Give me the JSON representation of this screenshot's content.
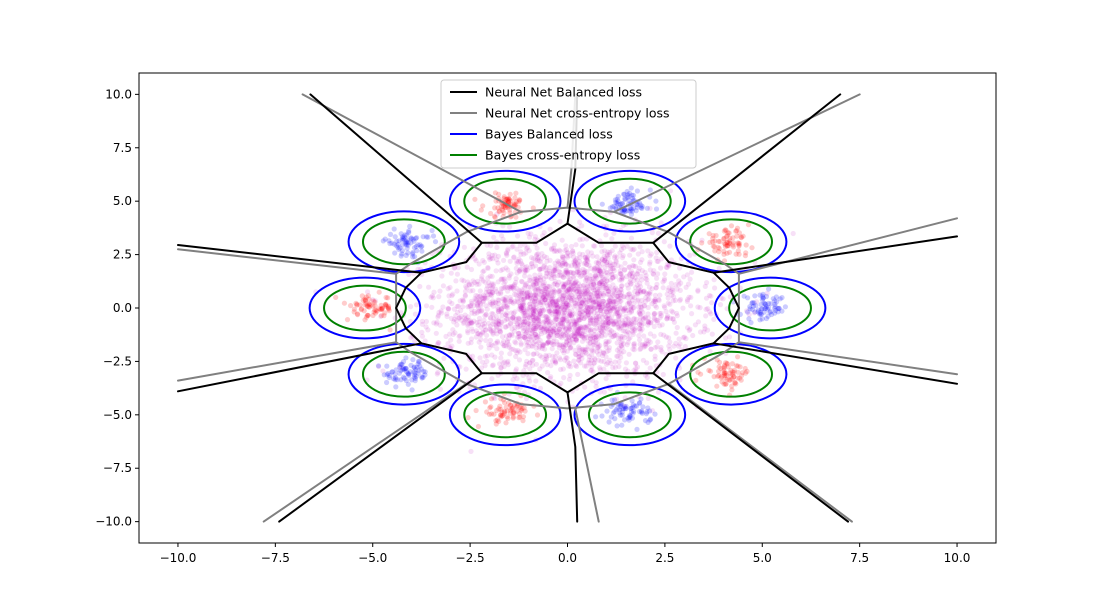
{
  "chart_data": {
    "type": "scatter",
    "title": "",
    "xlabel": "",
    "ylabel": "",
    "xlim": [
      -11,
      11
    ],
    "ylim": [
      -11,
      11
    ],
    "xticks": [
      -10.0,
      -7.5,
      -5.0,
      -2.5,
      0.0,
      2.5,
      5.0,
      7.5,
      10.0
    ],
    "yticks": [
      -10.0,
      -7.5,
      -5.0,
      -2.5,
      0.0,
      2.5,
      5.0,
      7.5,
      10.0
    ],
    "xtick_labels": [
      "−10.0",
      "−7.5",
      "−5.0",
      "−2.5",
      "0.0",
      "2.5",
      "5.0",
      "7.5",
      "10.0"
    ],
    "ytick_labels": [
      "−10.0",
      "−7.5",
      "−5.0",
      "−2.5",
      "0.0",
      "2.5",
      "5.0",
      "7.5",
      "10.0"
    ],
    "grid": false,
    "legend_position": "top-center",
    "legend": [
      {
        "label": "Neural Net Balanced loss",
        "color": "#000000"
      },
      {
        "label": "Neural Net cross-entropy loss",
        "color": "#808080"
      },
      {
        "label": "Bayes Balanced loss",
        "color": "#0000ff"
      },
      {
        "label": "Bayes cross-entropy loss",
        "color": "#008000"
      }
    ],
    "scatter_groups": [
      {
        "color": "#c000c0",
        "center": [
          0,
          0
        ],
        "spread": 1.6,
        "count": 2600,
        "alpha": 0.12
      },
      {
        "color": "#ff0000",
        "center": [
          -1.55,
          4.85
        ],
        "spread": 0.3,
        "count": 70,
        "alpha": 0.2
      },
      {
        "color": "#0000ff",
        "center": [
          1.55,
          4.85
        ],
        "spread": 0.3,
        "count": 70,
        "alpha": 0.2
      },
      {
        "color": "#0000ff",
        "center": [
          -4.1,
          3.05
        ],
        "spread": 0.3,
        "count": 70,
        "alpha": 0.2
      },
      {
        "color": "#ff0000",
        "center": [
          4.1,
          3.05
        ],
        "spread": 0.3,
        "count": 70,
        "alpha": 0.2
      },
      {
        "color": "#ff0000",
        "center": [
          -5.05,
          0.0
        ],
        "spread": 0.3,
        "count": 70,
        "alpha": 0.2
      },
      {
        "color": "#0000ff",
        "center": [
          5.05,
          0.0
        ],
        "spread": 0.3,
        "count": 70,
        "alpha": 0.2
      },
      {
        "color": "#0000ff",
        "center": [
          -4.1,
          -3.05
        ],
        "spread": 0.3,
        "count": 70,
        "alpha": 0.2
      },
      {
        "color": "#ff0000",
        "center": [
          4.1,
          -3.05
        ],
        "spread": 0.3,
        "count": 70,
        "alpha": 0.2
      },
      {
        "color": "#ff0000",
        "center": [
          -1.55,
          -4.85
        ],
        "spread": 0.3,
        "count": 70,
        "alpha": 0.2
      },
      {
        "color": "#0000ff",
        "center": [
          1.55,
          -4.85
        ],
        "spread": 0.3,
        "count": 70,
        "alpha": 0.2
      }
    ],
    "ellipse_centers": [
      [
        -1.6,
        5.0
      ],
      [
        1.6,
        5.0
      ],
      [
        -4.2,
        3.1
      ],
      [
        4.2,
        3.1
      ],
      [
        -5.2,
        0.0
      ],
      [
        5.2,
        0.0
      ],
      [
        -4.2,
        -3.1
      ],
      [
        4.2,
        -3.1
      ],
      [
        -1.6,
        -5.0
      ],
      [
        1.6,
        -5.0
      ]
    ],
    "bayes_balanced_radii": [
      1.42,
      1.42
    ],
    "bayes_crossentropy_radii": [
      1.05,
      1.05
    ],
    "nn_balanced_boundary": {
      "inner_polygon": [
        [
          -2.2,
          3.05
        ],
        [
          -0.8,
          3.05
        ],
        [
          0.0,
          3.95
        ],
        [
          0.8,
          3.05
        ],
        [
          2.2,
          3.05
        ],
        [
          2.6,
          2.15
        ],
        [
          3.75,
          1.65
        ],
        [
          4.15,
          0.95
        ],
        [
          4.4,
          0.0
        ],
        [
          4.15,
          -0.95
        ],
        [
          3.75,
          -1.65
        ],
        [
          2.6,
          -2.15
        ],
        [
          2.2,
          -3.05
        ],
        [
          0.8,
          -3.05
        ],
        [
          0.0,
          -3.95
        ],
        [
          -0.8,
          -3.05
        ],
        [
          -2.2,
          -3.05
        ],
        [
          -2.6,
          -2.15
        ],
        [
          -3.75,
          -1.65
        ],
        [
          -4.15,
          -0.95
        ],
        [
          -4.4,
          0.0
        ],
        [
          -4.15,
          0.95
        ],
        [
          -3.75,
          1.65
        ],
        [
          -2.6,
          2.15
        ]
      ],
      "rays": [
        [
          [
            0.0,
            3.95
          ],
          [
            0.2,
            6.5
          ],
          [
            0.25,
            10.0
          ]
        ],
        [
          [
            0.0,
            -3.95
          ],
          [
            0.2,
            -6.5
          ],
          [
            0.25,
            -10.0
          ]
        ],
        [
          [
            -2.2,
            3.05
          ],
          [
            -6.6,
            10.0
          ]
        ],
        [
          [
            2.2,
            3.05
          ],
          [
            7.0,
            10.0
          ]
        ],
        [
          [
            -2.2,
            -3.05
          ],
          [
            -7.4,
            -10.0
          ]
        ],
        [
          [
            2.2,
            -3.05
          ],
          [
            7.2,
            -10.0
          ]
        ],
        [
          [
            -3.75,
            1.65
          ],
          [
            -10.0,
            2.95
          ]
        ],
        [
          [
            3.75,
            1.65
          ],
          [
            10.0,
            3.35
          ]
        ],
        [
          [
            -3.75,
            -1.65
          ],
          [
            -10.0,
            -3.9
          ]
        ],
        [
          [
            3.75,
            -1.65
          ],
          [
            10.0,
            -3.55
          ]
        ]
      ]
    },
    "nn_crossentropy_boundary": {
      "inner_polygon": [
        [
          -1.2,
          4.5
        ],
        [
          0.0,
          4.7
        ],
        [
          1.2,
          4.5
        ],
        [
          2.6,
          3.55
        ],
        [
          4.0,
          2.1
        ],
        [
          4.4,
          1.6
        ],
        [
          4.4,
          -1.6
        ],
        [
          4.0,
          -2.1
        ],
        [
          2.6,
          -3.55
        ],
        [
          1.2,
          -4.5
        ],
        [
          0.0,
          -4.7
        ],
        [
          -1.2,
          -4.5
        ],
        [
          -2.6,
          -3.55
        ],
        [
          -4.0,
          -2.1
        ],
        [
          -4.4,
          -1.6
        ],
        [
          -4.4,
          1.6
        ],
        [
          -4.0,
          2.1
        ],
        [
          -2.6,
          3.55
        ]
      ],
      "rays": [
        [
          [
            0.0,
            4.7
          ],
          [
            0.1,
            6.5
          ],
          [
            0.2,
            10.0
          ]
        ],
        [
          [
            0.2,
            -4.7
          ],
          [
            0.8,
            -10.0
          ]
        ],
        [
          [
            -1.2,
            4.5
          ],
          [
            -6.8,
            10.0
          ]
        ],
        [
          [
            1.2,
            4.5
          ],
          [
            7.5,
            10.0
          ]
        ],
        [
          [
            -2.6,
            -3.55
          ],
          [
            -7.8,
            -10.0
          ]
        ],
        [
          [
            2.6,
            -3.55
          ],
          [
            7.3,
            -10.0
          ]
        ],
        [
          [
            -4.4,
            1.6
          ],
          [
            -10.0,
            2.75
          ]
        ],
        [
          [
            4.4,
            1.6
          ],
          [
            10.0,
            4.2
          ]
        ],
        [
          [
            -4.4,
            -1.6
          ],
          [
            -10.0,
            -3.4
          ]
        ],
        [
          [
            4.4,
            -1.6
          ],
          [
            10.0,
            -3.1
          ]
        ]
      ]
    }
  }
}
